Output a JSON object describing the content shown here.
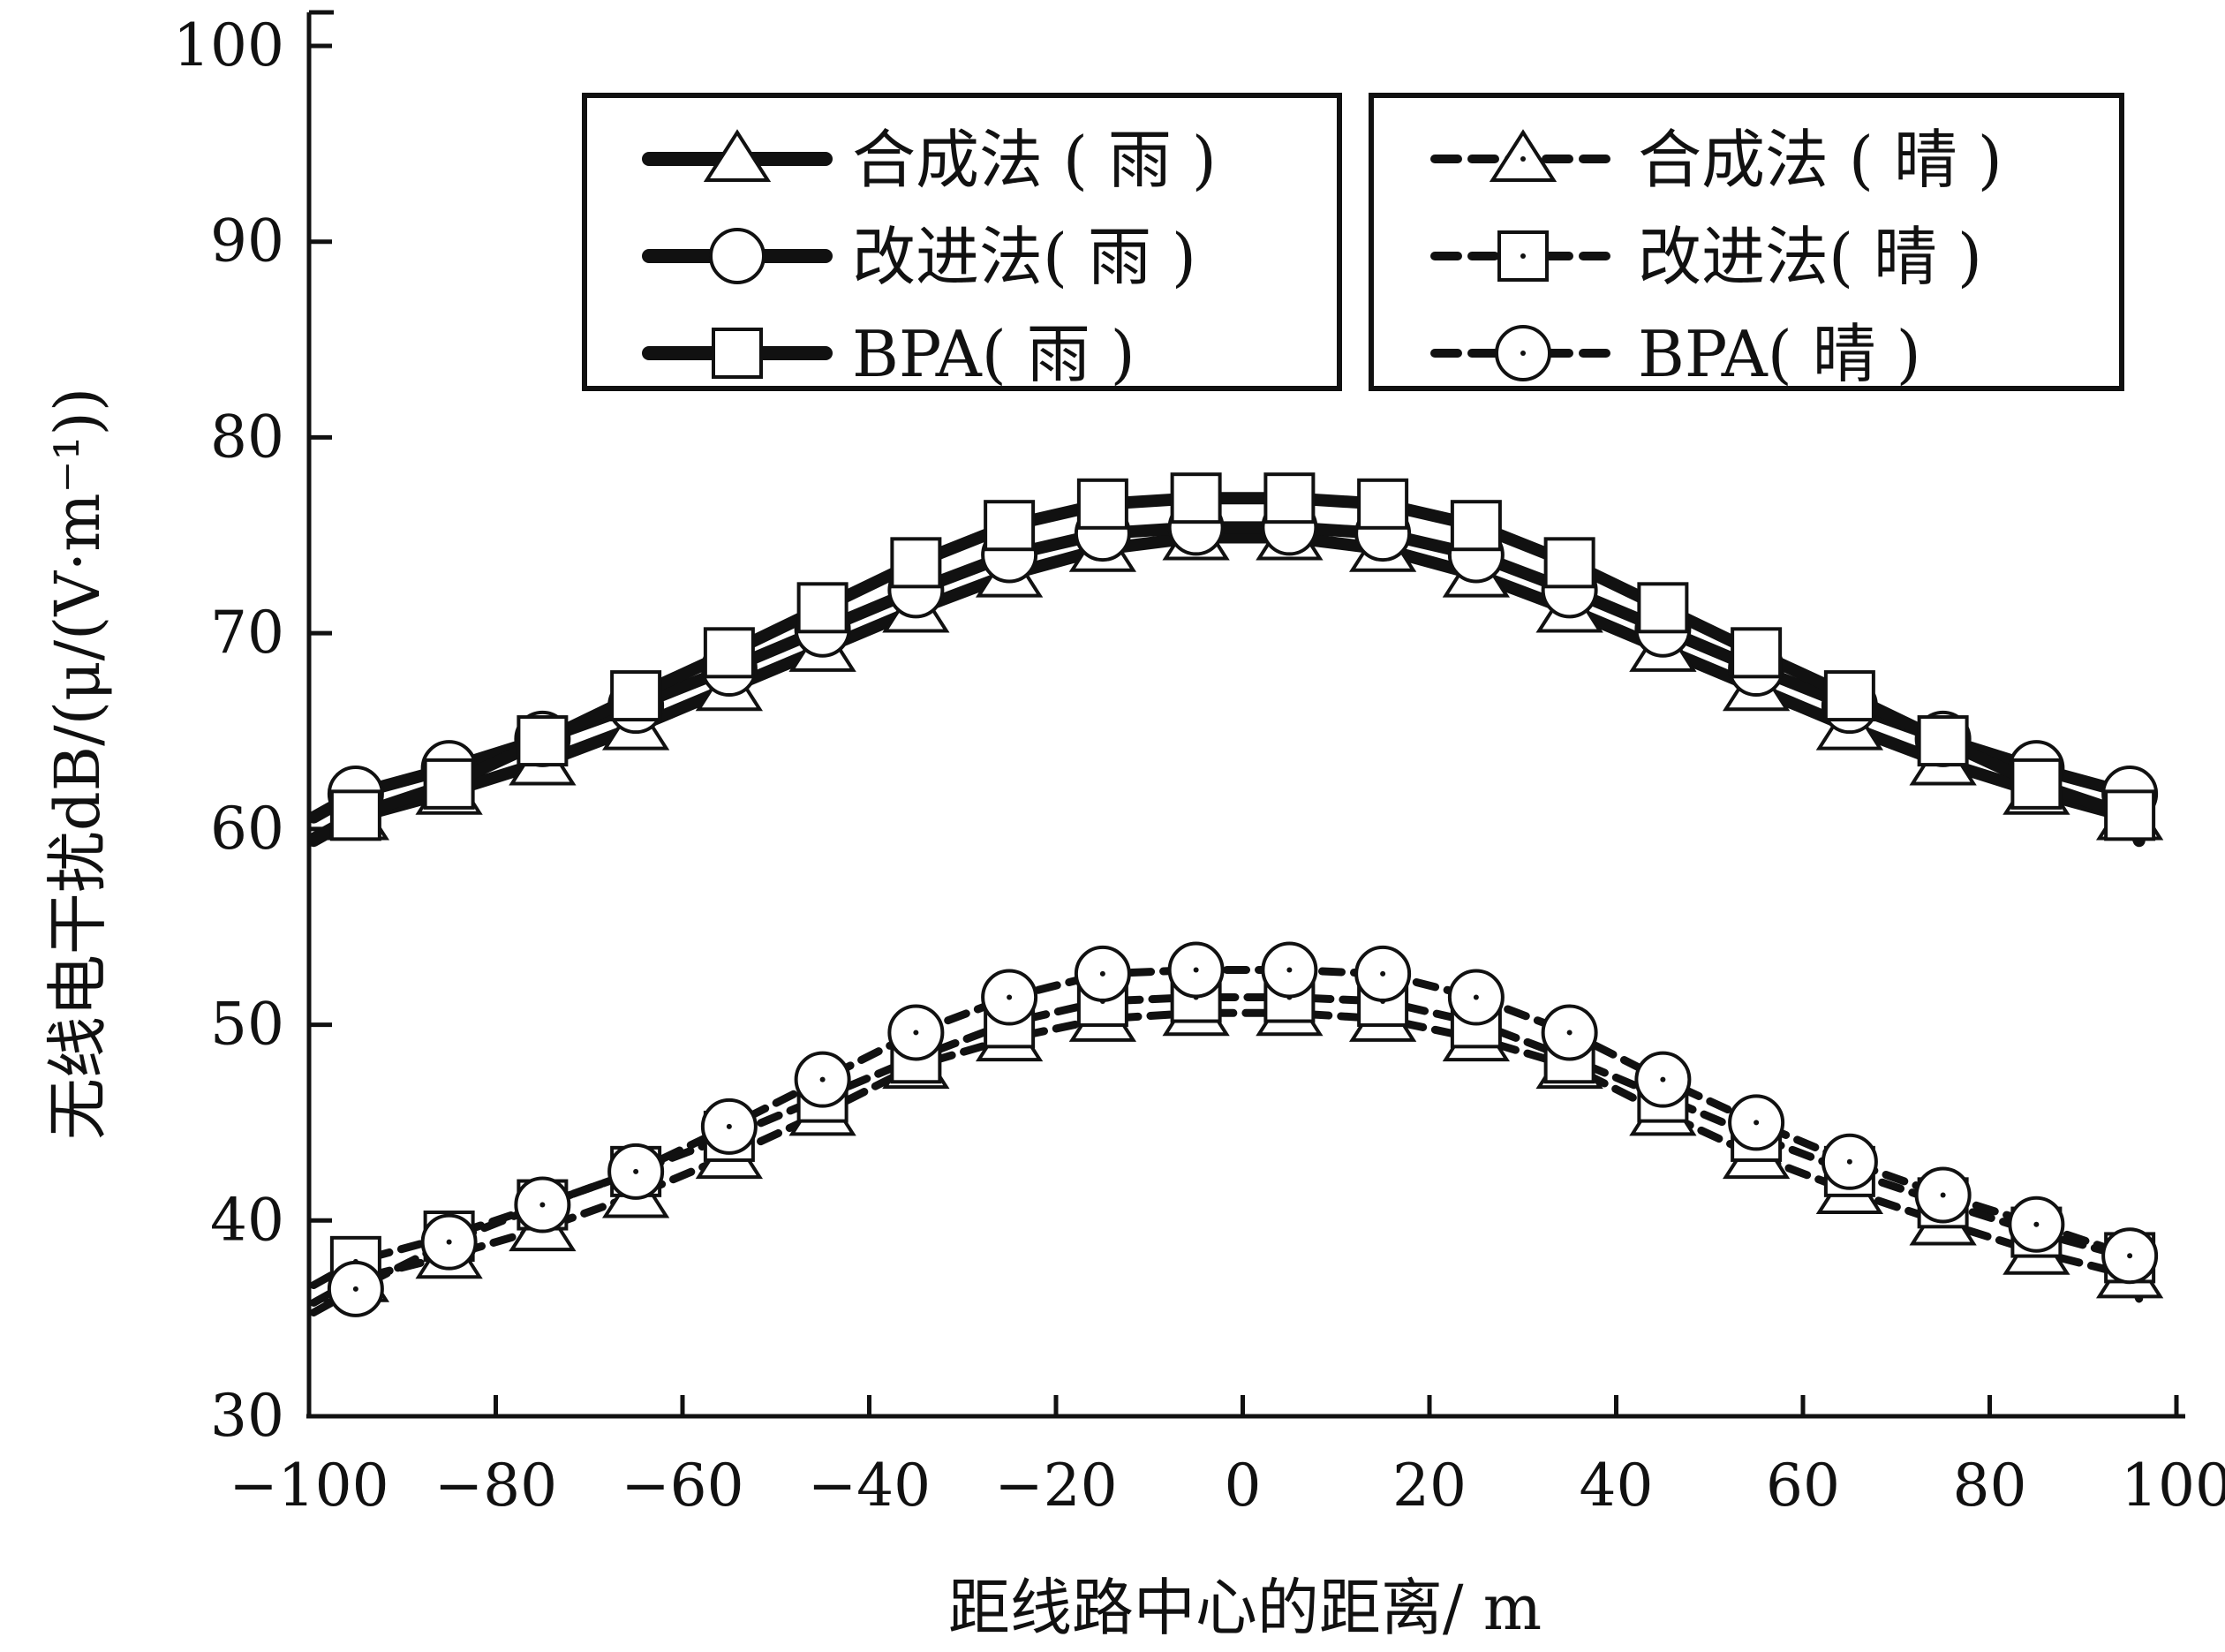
{
  "chart_data": {
    "type": "line",
    "xlabel": "距线路中心的距离/ m",
    "ylabel": "无线电干扰dB/(μ/(V·m⁻¹))",
    "xlim": [
      -100,
      100
    ],
    "ylim": [
      30,
      100
    ],
    "x_ticks": [
      "−100",
      "−80",
      "−60",
      "−40",
      "−20",
      "0",
      "20",
      "40",
      "60",
      "80",
      "100"
    ],
    "y_ticks": [
      "30",
      "40",
      "50",
      "60",
      "70",
      "80",
      "90",
      "100"
    ],
    "x": [
      -95,
      -85,
      -75,
      -65,
      -55,
      -45,
      -35,
      -25,
      -15,
      -5,
      5,
      15,
      25,
      35,
      45,
      55,
      65,
      75,
      85,
      95
    ],
    "series": [
      {
        "name": "合成法 ( 雨 )",
        "style": "solid",
        "marker": "triangle",
        "values": [
          60.6,
          61.9,
          63.4,
          65.2,
          67.2,
          69.2,
          71.2,
          73.0,
          74.3,
          74.9,
          74.9,
          74.3,
          73.0,
          71.2,
          69.2,
          67.2,
          65.2,
          63.4,
          61.9,
          60.6
        ]
      },
      {
        "name": "改进法( 雨 )",
        "style": "solid",
        "marker": "circle",
        "values": [
          61.8,
          63.1,
          64.6,
          66.3,
          68.2,
          70.2,
          72.2,
          74.0,
          75.1,
          75.4,
          75.4,
          75.1,
          74.0,
          72.2,
          70.2,
          68.2,
          66.3,
          64.6,
          63.1,
          61.8
        ]
      },
      {
        "name": "BPA( 雨 )",
        "style": "solid",
        "marker": "square",
        "values": [
          60.7,
          62.3,
          64.5,
          66.8,
          69.0,
          71.3,
          73.6,
          75.5,
          76.6,
          76.9,
          76.9,
          76.6,
          75.5,
          73.6,
          71.3,
          69.0,
          66.8,
          64.5,
          62.3,
          60.7
        ]
      },
      {
        "name": "合成法 ( 晴 )",
        "style": "dashed",
        "marker": "triangle-dot",
        "values": [
          37.0,
          38.2,
          39.6,
          41.3,
          43.3,
          45.5,
          47.9,
          49.3,
          50.3,
          50.6,
          50.6,
          50.3,
          49.3,
          47.9,
          45.5,
          43.3,
          41.5,
          39.9,
          38.4,
          37.2
        ]
      },
      {
        "name": "改进法( 晴 )",
        "style": "dashed",
        "marker": "square-dot",
        "values": [
          37.9,
          39.2,
          40.8,
          42.5,
          44.3,
          46.3,
          48.3,
          50.1,
          51.2,
          51.4,
          51.4,
          51.2,
          50.1,
          48.3,
          46.3,
          44.3,
          42.5,
          40.9,
          39.4,
          38.1
        ]
      },
      {
        "name": "BPA( 晴 )",
        "style": "dashed",
        "marker": "circle-dot",
        "values": [
          36.5,
          38.9,
          40.8,
          42.5,
          44.8,
          47.2,
          49.6,
          51.4,
          52.6,
          52.8,
          52.8,
          52.6,
          51.4,
          49.6,
          47.2,
          45.0,
          43.0,
          41.3,
          39.8,
          38.2
        ]
      }
    ],
    "legend": {
      "placement": "top, two boxes",
      "left_box": [
        "合成法 ( 雨 )",
        "改进法( 雨 )",
        "BPA( 雨 )"
      ],
      "right_box": [
        "合成法 ( 晴 )",
        "改进法( 晴 )",
        "BPA( 晴 )"
      ]
    },
    "grid": false,
    "line_color": "#111111",
    "marker_fill": "#ffffff"
  }
}
